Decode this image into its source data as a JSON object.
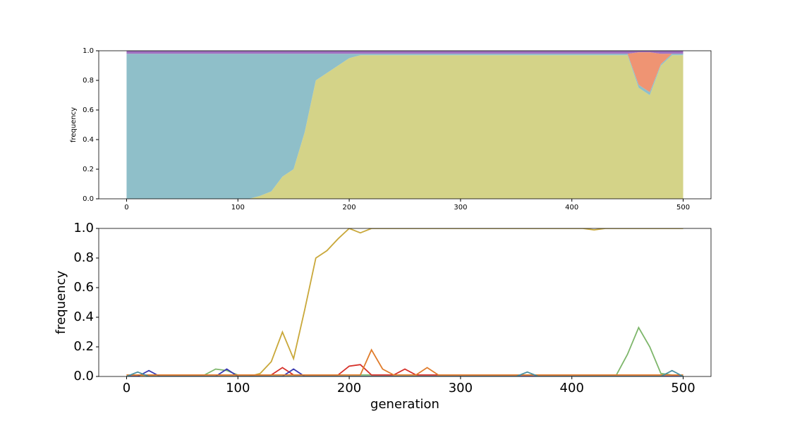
{
  "chart_data": [
    {
      "type": "stackedarea",
      "ylabel": "frequency",
      "x": [
        0,
        10,
        20,
        30,
        40,
        50,
        60,
        70,
        80,
        90,
        100,
        110,
        120,
        130,
        140,
        150,
        160,
        170,
        180,
        190,
        200,
        210,
        220,
        230,
        240,
        250,
        260,
        270,
        280,
        290,
        300,
        310,
        320,
        330,
        340,
        350,
        360,
        370,
        380,
        390,
        400,
        410,
        420,
        430,
        440,
        450,
        460,
        470,
        480,
        490,
        500
      ],
      "series": [
        {
          "color": "#d4d388",
          "values": [
            0,
            0,
            0,
            0,
            0,
            0,
            0,
            0,
            0,
            0,
            0,
            0,
            0.02,
            0.05,
            0.15,
            0.2,
            0.45,
            0.8,
            0.85,
            0.9,
            0.95,
            0.97,
            0.97,
            0.97,
            0.97,
            0.97,
            0.97,
            0.97,
            0.97,
            0.97,
            0.97,
            0.97,
            0.97,
            0.97,
            0.97,
            0.97,
            0.97,
            0.97,
            0.97,
            0.97,
            0.97,
            0.97,
            0.97,
            0.97,
            0.97,
            0.97,
            0.75,
            0.7,
            0.9,
            0.97,
            0.97
          ]
        },
        {
          "color": "#8fbfc9",
          "values": [
            0.98,
            0.98,
            0.98,
            0.98,
            0.98,
            0.98,
            0.98,
            0.98,
            0.98,
            0.98,
            0.98,
            0.98,
            0.96,
            0.93,
            0.83,
            0.78,
            0.53,
            0.18,
            0.13,
            0.08,
            0.03,
            0.01,
            0.01,
            0.01,
            0.01,
            0.01,
            0.01,
            0.01,
            0.01,
            0.01,
            0.01,
            0.01,
            0.01,
            0.01,
            0.01,
            0.01,
            0.01,
            0.01,
            0.01,
            0.01,
            0.01,
            0.01,
            0.01,
            0.01,
            0.01,
            0.01,
            0.02,
            0.02,
            0.01,
            0.01,
            0.01
          ]
        },
        {
          "color": "#ef9473",
          "values": [
            0,
            0,
            0,
            0,
            0,
            0,
            0,
            0,
            0,
            0,
            0,
            0,
            0,
            0,
            0,
            0,
            0,
            0,
            0,
            0,
            0,
            0,
            0,
            0,
            0,
            0,
            0,
            0,
            0,
            0,
            0,
            0,
            0,
            0,
            0,
            0,
            0,
            0,
            0,
            0,
            0,
            0,
            0,
            0,
            0,
            0,
            0.22,
            0.27,
            0.07,
            0,
            0
          ]
        },
        {
          "color": "#a070c0",
          "values": [
            0.02,
            0.02,
            0.02,
            0.02,
            0.02,
            0.02,
            0.02,
            0.02,
            0.02,
            0.02,
            0.02,
            0.02,
            0.02,
            0.02,
            0.02,
            0.02,
            0.02,
            0.02,
            0.02,
            0.02,
            0.02,
            0.02,
            0.02,
            0.02,
            0.02,
            0.02,
            0.02,
            0.02,
            0.02,
            0.02,
            0.02,
            0.02,
            0.02,
            0.02,
            0.02,
            0.02,
            0.02,
            0.02,
            0.02,
            0.02,
            0.02,
            0.02,
            0.02,
            0.02,
            0.02,
            0.02,
            0.01,
            0.01,
            0.02,
            0.02,
            0.02
          ]
        }
      ],
      "xlim": [
        -25,
        525
      ],
      "ylim": [
        0,
        1
      ],
      "xticks": [
        0,
        100,
        200,
        300,
        400,
        500
      ],
      "yticks": [
        {
          "value": 0,
          "label": "0.0"
        },
        {
          "value": 0.2,
          "label": "0.2"
        },
        {
          "value": 0.4,
          "label": "0.4"
        },
        {
          "value": 0.6,
          "label": "0.6"
        },
        {
          "value": 0.8,
          "label": "0.8"
        },
        {
          "value": 1,
          "label": "1.0"
        }
      ]
    },
    {
      "type": "line",
      "xlabel": "generation",
      "ylabel": "frequency",
      "x": [
        0,
        10,
        20,
        30,
        40,
        50,
        60,
        70,
        80,
        90,
        100,
        110,
        120,
        130,
        140,
        150,
        160,
        170,
        180,
        190,
        200,
        210,
        220,
        230,
        240,
        250,
        260,
        270,
        280,
        290,
        300,
        310,
        320,
        330,
        340,
        350,
        360,
        370,
        380,
        390,
        400,
        410,
        420,
        430,
        440,
        450,
        460,
        470,
        480,
        490,
        500
      ],
      "series": [
        {
          "color": "#c9a83a",
          "values": [
            0,
            0,
            0,
            0,
            0,
            0,
            0,
            0,
            0,
            0,
            0,
            0,
            0.02,
            0.1,
            0.3,
            0.12,
            0.45,
            0.8,
            0.85,
            0.93,
            1,
            0.97,
            1,
            1,
            1,
            1,
            1,
            1,
            1,
            1,
            1,
            1,
            1,
            1,
            1,
            1,
            1,
            1,
            1,
            1,
            1,
            1,
            0.99,
            1,
            1,
            1,
            1,
            1,
            1,
            1,
            1
          ]
        },
        {
          "color": "#7db66a",
          "values": [
            0.01,
            0.01,
            0.01,
            0.01,
            0.01,
            0.01,
            0.01,
            0.01,
            0.05,
            0.04,
            0.01,
            0.01,
            0.01,
            0.01,
            0.01,
            0.01,
            0.01,
            0.01,
            0.01,
            0.01,
            0.01,
            0.01,
            0.01,
            0.01,
            0.01,
            0.01,
            0.01,
            0.01,
            0.01,
            0.01,
            0.01,
            0.01,
            0.01,
            0.01,
            0.01,
            0.01,
            0.01,
            0.01,
            0.01,
            0.01,
            0.01,
            0.01,
            0.01,
            0.01,
            0.01,
            0.15,
            0.33,
            0.2,
            0.02,
            0.01,
            0.01
          ]
        },
        {
          "color": "#d62f28",
          "values": [
            0.01,
            0.01,
            0.01,
            0.01,
            0.01,
            0.01,
            0.01,
            0.01,
            0.01,
            0.01,
            0.01,
            0.01,
            0.01,
            0.01,
            0.06,
            0.01,
            0.01,
            0.01,
            0.01,
            0.01,
            0.07,
            0.08,
            0.01,
            0.01,
            0.01,
            0.05,
            0.01,
            0.01,
            0.01,
            0.01,
            0.01,
            0.01,
            0.01,
            0.01,
            0.01,
            0.01,
            0.01,
            0.01,
            0.01,
            0.01,
            0.01,
            0.01,
            0.01,
            0.01,
            0.01,
            0.01,
            0.01,
            0.01,
            0.01,
            0.01,
            0.01
          ]
        },
        {
          "color": "#3b3bb0",
          "values": [
            0,
            0,
            0.04,
            0,
            0,
            0,
            0,
            0,
            0,
            0.05,
            0,
            0,
            0,
            0,
            0,
            0.05,
            0,
            0,
            0,
            0,
            0,
            0,
            0,
            0,
            0,
            0,
            0,
            0,
            0,
            0,
            0,
            0,
            0,
            0,
            0,
            0,
            0,
            0,
            0,
            0,
            0,
            0,
            0,
            0,
            0,
            0,
            0,
            0,
            0,
            0,
            0
          ]
        },
        {
          "color": "#e07b2a",
          "values": [
            0.01,
            0.01,
            0.01,
            0.01,
            0.01,
            0.01,
            0.01,
            0.01,
            0.01,
            0.01,
            0.01,
            0.01,
            0.01,
            0.01,
            0.01,
            0.01,
            0.01,
            0.01,
            0.01,
            0.01,
            0.01,
            0.01,
            0.18,
            0.05,
            0.01,
            0.01,
            0.01,
            0.06,
            0.01,
            0.01,
            0.01,
            0.01,
            0.01,
            0.01,
            0.01,
            0.01,
            0.01,
            0.01,
            0.01,
            0.01,
            0.01,
            0.01,
            0.01,
            0.01,
            0.01,
            0.01,
            0.01,
            0.01,
            0.01,
            0.01,
            0.01
          ]
        },
        {
          "color": "#4a8fa0",
          "values": [
            0,
            0.03,
            0,
            0,
            0,
            0,
            0,
            0,
            0,
            0,
            0,
            0,
            0,
            0,
            0,
            0,
            0,
            0,
            0,
            0,
            0,
            0,
            0,
            0,
            0,
            0,
            0,
            0,
            0,
            0,
            0,
            0,
            0,
            0,
            0,
            0,
            0.03,
            0,
            0,
            0,
            0,
            0,
            0,
            0,
            0,
            0,
            0,
            0,
            0,
            0.04,
            0
          ]
        }
      ],
      "xlim": [
        -25,
        525
      ],
      "ylim": [
        0,
        1
      ],
      "xticks": [
        0,
        100,
        200,
        300,
        400,
        500
      ],
      "yticks": [
        {
          "value": 0,
          "label": "0.0"
        },
        {
          "value": 0.2,
          "label": "0.2"
        },
        {
          "value": 0.4,
          "label": "0.4"
        },
        {
          "value": 0.6,
          "label": "0.6"
        },
        {
          "value": 0.8,
          "label": "0.8"
        },
        {
          "value": 1,
          "label": "1.0"
        }
      ]
    }
  ]
}
